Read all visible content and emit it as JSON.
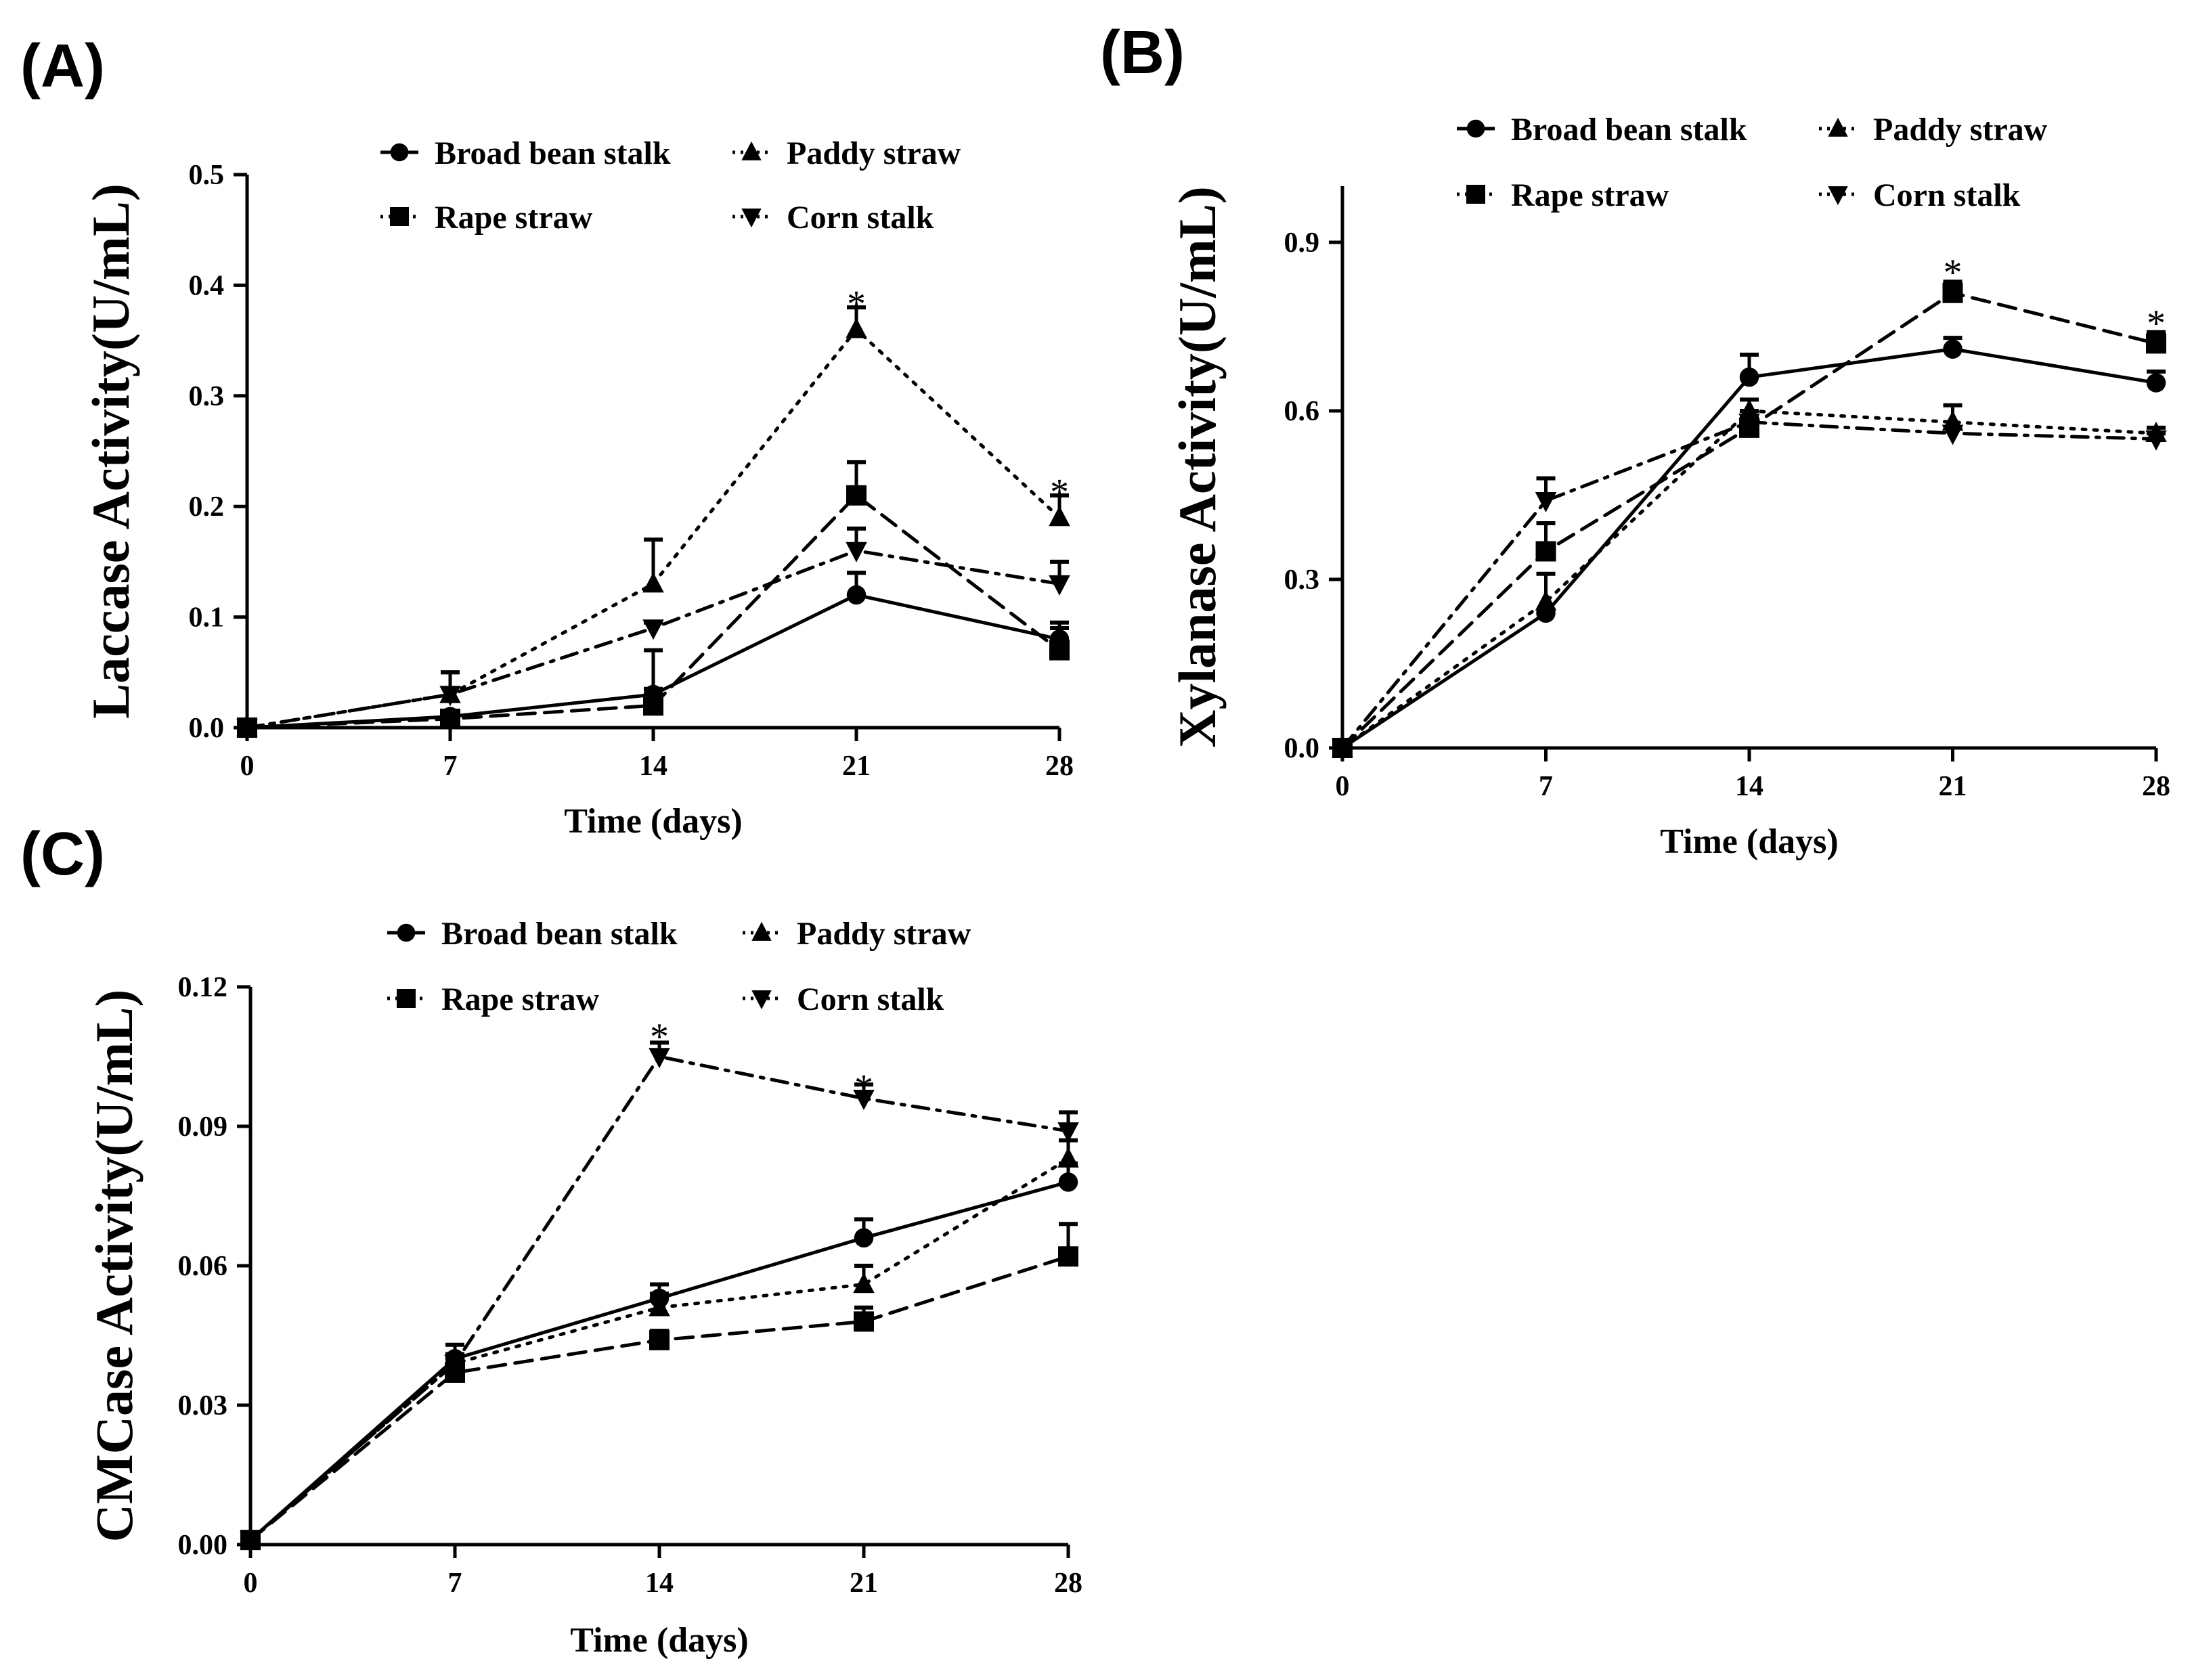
{
  "chart_data": [
    {
      "panel": "(A)",
      "type": "line",
      "title": "",
      "xlabel": "Time (days)",
      "ylabel": "Laccase Activity(U/mL)",
      "x": [
        0,
        7,
        14,
        21,
        28
      ],
      "x_ticks": [
        "0",
        "7",
        "14",
        "21",
        "28"
      ],
      "xlim": [
        0,
        28
      ],
      "ylim": [
        0,
        0.5
      ],
      "y_ticks": [
        "0.0",
        "0.1",
        "0.2",
        "0.3",
        "0.4",
        "0.5"
      ],
      "grid": false,
      "legend_position": "top-center",
      "series": [
        {
          "name": "Broad bean stalk",
          "marker": "circle",
          "line": "solid",
          "values": [
            0,
            0.01,
            0.03,
            0.12,
            0.08
          ],
          "errors": [
            0,
            0,
            0.005,
            0.02,
            0.015
          ]
        },
        {
          "name": "Rape straw",
          "marker": "square",
          "line": "dashed",
          "values": [
            0,
            0.008,
            0.02,
            0.21,
            0.07
          ],
          "errors": [
            0,
            0,
            0.05,
            0.03,
            0.02
          ]
        },
        {
          "name": "Paddy straw",
          "marker": "triangle-up",
          "line": "dotted",
          "values": [
            0,
            0.03,
            0.13,
            0.36,
            0.19
          ],
          "errors": [
            0,
            0.02,
            0.04,
            0.02,
            0.02
          ]
        },
        {
          "name": "Corn stalk",
          "marker": "triangle-down",
          "line": "dashdot",
          "values": [
            0,
            0.03,
            0.09,
            0.16,
            0.13
          ],
          "errors": [
            0,
            0.02,
            0.005,
            0.02,
            0.02
          ]
        }
      ],
      "annotations": [
        {
          "text": "*",
          "x": 21,
          "y": 0.39
        },
        {
          "text": "*",
          "x": 28,
          "y": 0.22
        }
      ]
    },
    {
      "panel": "(B)",
      "type": "line",
      "title": "",
      "xlabel": "Time (days)",
      "ylabel": "Xylanase Activity(U/mL)",
      "x": [
        0,
        7,
        14,
        21,
        28
      ],
      "x_ticks": [
        "0",
        "7",
        "14",
        "21",
        "28"
      ],
      "xlim": [
        0,
        28
      ],
      "ylim": [
        0,
        1.0
      ],
      "y_ticks": [
        "0.0",
        "0.3",
        "0.6",
        "0.9"
      ],
      "grid": false,
      "legend_position": "top-center",
      "series": [
        {
          "name": "Broad bean stalk",
          "marker": "circle",
          "line": "solid",
          "values": [
            0,
            0.24,
            0.66,
            0.71,
            0.65
          ],
          "errors": [
            0,
            0,
            0.04,
            0.02,
            0.02
          ]
        },
        {
          "name": "Rape straw",
          "marker": "square",
          "line": "dashed",
          "values": [
            0,
            0.35,
            0.57,
            0.81,
            0.72
          ],
          "errors": [
            0,
            0.05,
            0.02,
            0.02,
            0.02
          ]
        },
        {
          "name": "Paddy straw",
          "marker": "triangle-up",
          "line": "dotted",
          "values": [
            0,
            0.26,
            0.6,
            0.58,
            0.56
          ],
          "errors": [
            0,
            0.05,
            0.02,
            0.03,
            0.01
          ]
        },
        {
          "name": "Corn stalk",
          "marker": "triangle-down",
          "line": "dashdot",
          "values": [
            0,
            0.44,
            0.58,
            0.56,
            0.55
          ],
          "errors": [
            0,
            0.04,
            0.02,
            0.01,
            0.01
          ]
        }
      ],
      "annotations": [
        {
          "text": "*",
          "x": 21,
          "y": 0.86
        },
        {
          "text": "*",
          "x": 28,
          "y": 0.77
        }
      ]
    },
    {
      "panel": "(C)",
      "type": "line",
      "title": "",
      "xlabel": "Time (days)",
      "ylabel": "CMCase Activity(U/mL)",
      "x": [
        0,
        7,
        14,
        21,
        28
      ],
      "x_ticks": [
        "0",
        "7",
        "14",
        "21",
        "28"
      ],
      "xlim": [
        0,
        28
      ],
      "ylim": [
        0,
        0.12
      ],
      "y_ticks": [
        "0.00",
        "0.03",
        "0.06",
        "0.09",
        "0.12"
      ],
      "grid": false,
      "legend_position": "top-center",
      "series": [
        {
          "name": "Broad bean stalk",
          "marker": "circle",
          "line": "solid",
          "values": [
            0.001,
            0.04,
            0.053,
            0.066,
            0.078
          ],
          "errors": [
            0,
            0.003,
            0.003,
            0.004,
            0.004
          ]
        },
        {
          "name": "Rape straw",
          "marker": "square",
          "line": "dashed",
          "values": [
            0.001,
            0.037,
            0.044,
            0.048,
            0.062
          ],
          "errors": [
            0,
            0.002,
            0.002,
            0.003,
            0.007
          ]
        },
        {
          "name": "Paddy straw",
          "marker": "triangle-up",
          "line": "dotted",
          "values": [
            0.001,
            0.039,
            0.051,
            0.056,
            0.083
          ],
          "errors": [
            0,
            0.002,
            0.003,
            0.004,
            0.004
          ]
        },
        {
          "name": "Corn stalk",
          "marker": "triangle-down",
          "line": "dashdot",
          "values": [
            0.001,
            0.039,
            0.105,
            0.096,
            0.089
          ],
          "errors": [
            0,
            0.002,
            0.003,
            0.003,
            0.004
          ]
        }
      ],
      "annotations": [
        {
          "text": "*",
          "x": 14,
          "y": 0.111
        },
        {
          "text": "*",
          "x": 21,
          "y": 0.1
        }
      ]
    }
  ]
}
